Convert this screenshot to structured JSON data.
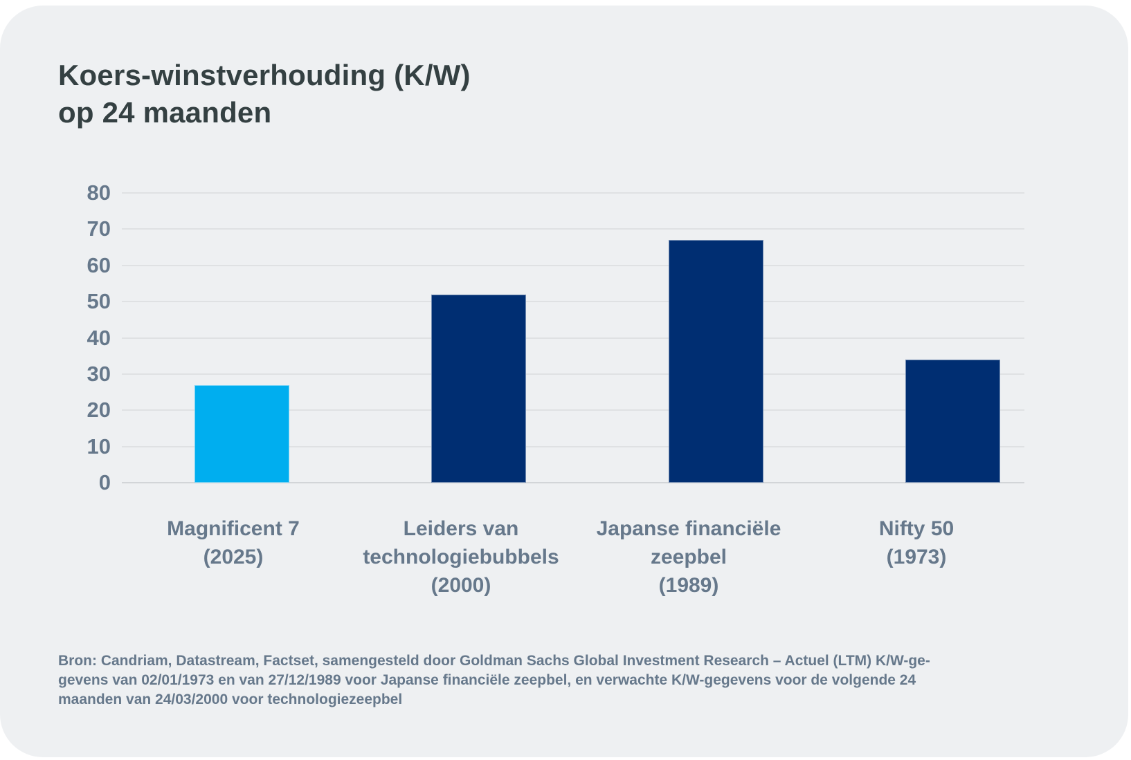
{
  "title": {
    "line1": "Koers-winstverhouding (K/W)",
    "line2": "op 24 maanden"
  },
  "chart_data": {
    "type": "bar",
    "title": "Koers-winstverhouding (K/W) op 24 maanden",
    "categories": [
      [
        "Magnificent 7",
        "(2025)"
      ],
      [
        "Leiders van",
        "technologiebubbels",
        "(2000)"
      ],
      [
        "Japanse financiële",
        "zeepbel",
        "(1989)"
      ],
      [
        "Nifty 50",
        "(1973)"
      ]
    ],
    "values": [
      27,
      52,
      67,
      34
    ],
    "bar_colors": [
      "#00AEEF",
      "#002E72",
      "#002E72",
      "#002E72"
    ],
    "xlabel": "",
    "ylabel": "",
    "ylim": [
      0,
      80
    ],
    "yticks": [
      0,
      10,
      20,
      30,
      40,
      50,
      60,
      70,
      80
    ],
    "grid": true,
    "legend_position": "none"
  },
  "footer": {
    "lines": [
      "Bron: Candriam, Datastream, Factset, samengesteld door Goldman Sachs Global Investment Research – Actuel (LTM) K/W-ge-",
      "gevens van 02/01/1973 en van 27/12/1989 voor Japanse financiële zeepbel, en verwachte K/W-gegevens voor de volgende 24",
      "maanden van 24/03/2000 voor technologiezeepbel"
    ]
  },
  "colors": {
    "accent_blue": "#00AEEF",
    "navy": "#002E72",
    "panel_bg": "#EEF0F2",
    "page_bg": "#FFFFFF",
    "title_text": "#344042",
    "slate_text": "#66788B",
    "gridline": "#DFE1E3",
    "baseline": "#D2D5D8"
  }
}
